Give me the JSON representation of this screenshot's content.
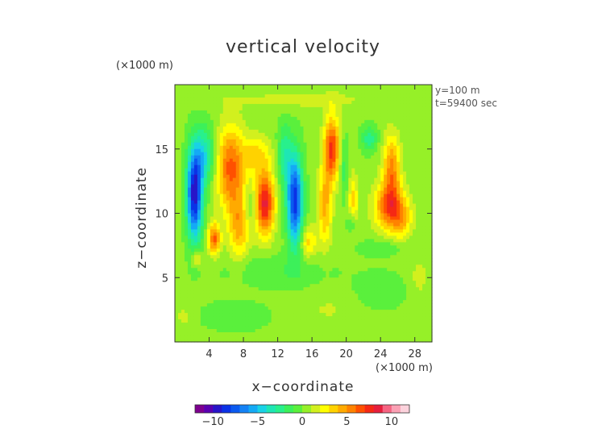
{
  "chart_data": {
    "type": "heatmap",
    "title": "vertical velocity",
    "xlabel": "x−coordinate",
    "ylabel": "z−coordinate",
    "x_unit": "(×1000 m)",
    "y_unit": "(×1000 m)",
    "annotations": [
      "y=100 m",
      "t=59400 sec"
    ],
    "xlim": [
      0,
      30
    ],
    "ylim": [
      0,
      20
    ],
    "x_ticks": [
      4,
      8,
      12,
      16,
      20,
      24,
      28
    ],
    "y_ticks": [
      5,
      10,
      15
    ],
    "colorbar": {
      "range": [
        -12,
        12
      ],
      "ticks": [
        -10,
        -5,
        0,
        5,
        10
      ],
      "tick_labels": [
        "−10",
        "−5",
        "0",
        "5",
        "10"
      ],
      "colors": [
        "#7d008f",
        "#5a00b0",
        "#2814c8",
        "#0a32e6",
        "#0a5af0",
        "#1482f5",
        "#14aaf5",
        "#19d2e6",
        "#1ee6b4",
        "#28f08c",
        "#3cf05a",
        "#5af03c",
        "#96f028",
        "#d2f01e",
        "#ffff00",
        "#ffd200",
        "#ffaa00",
        "#ff8200",
        "#ff5000",
        "#f52814",
        "#e61e3c",
        "#f56482",
        "#faa0b4",
        "#fcd2dc"
      ]
    },
    "background_value": 0.3,
    "features": [
      {
        "x": 2.3,
        "z": 11.5,
        "sx": 0.9,
        "sz": 3.5,
        "amp": -10
      },
      {
        "x": 3.5,
        "z": 14.5,
        "sx": 1.2,
        "sz": 2.2,
        "amp": -4
      },
      {
        "x": 4.6,
        "z": 8.0,
        "sx": 0.7,
        "sz": 1.2,
        "amp": 6
      },
      {
        "x": 2.5,
        "z": 6.5,
        "sx": 0.6,
        "sz": 0.6,
        "amp": 3
      },
      {
        "x": 6.5,
        "z": 13.5,
        "sx": 1.6,
        "sz": 3.2,
        "amp": 6
      },
      {
        "x": 7.5,
        "z": 9.0,
        "sx": 1.2,
        "sz": 2.5,
        "amp": 4
      },
      {
        "x": 10.5,
        "z": 10.8,
        "sx": 1.1,
        "sz": 2.4,
        "amp": 8
      },
      {
        "x": 9.5,
        "z": 14.5,
        "sx": 1.6,
        "sz": 1.5,
        "amp": 3
      },
      {
        "x": 8.8,
        "z": 10.5,
        "sx": 0.7,
        "sz": 1.2,
        "amp": -2
      },
      {
        "x": 12.8,
        "z": 14.5,
        "sx": 0.8,
        "sz": 2.5,
        "amp": -3
      },
      {
        "x": 14.0,
        "z": 11.0,
        "sx": 0.9,
        "sz": 3.5,
        "amp": -9
      },
      {
        "x": 15.6,
        "z": 7.8,
        "sx": 0.9,
        "sz": 1.2,
        "amp": 3
      },
      {
        "x": 18.3,
        "z": 15.0,
        "sx": 0.9,
        "sz": 2.5,
        "amp": 7
      },
      {
        "x": 17.5,
        "z": 10.5,
        "sx": 0.8,
        "sz": 3.0,
        "amp": 4
      },
      {
        "x": 19.8,
        "z": 13.5,
        "sx": 0.5,
        "sz": 2.5,
        "amp": -2
      },
      {
        "x": 20.8,
        "z": 11.0,
        "sx": 0.6,
        "sz": 2.0,
        "amp": 3
      },
      {
        "x": 20.6,
        "z": 9.2,
        "sx": 0.5,
        "sz": 0.8,
        "amp": -2
      },
      {
        "x": 22.7,
        "z": 15.8,
        "sx": 0.9,
        "sz": 1.0,
        "amp": -3
      },
      {
        "x": 25.3,
        "z": 13.5,
        "sx": 1.0,
        "sz": 2.5,
        "amp": 5
      },
      {
        "x": 25.0,
        "z": 10.5,
        "sx": 1.7,
        "sz": 1.8,
        "amp": 6
      },
      {
        "x": 26.5,
        "z": 9.5,
        "sx": 1.2,
        "sz": 1.5,
        "amp": 3
      },
      {
        "x": 12.0,
        "z": 5.5,
        "sx": 6.0,
        "sz": 1.2,
        "amp": -1.2
      },
      {
        "x": 24.0,
        "z": 4.0,
        "sx": 3.0,
        "sz": 1.5,
        "amp": -1.0
      },
      {
        "x": 7.0,
        "z": 2.0,
        "sx": 4.0,
        "sz": 1.2,
        "amp": -1.0
      },
      {
        "x": 18.0,
        "z": 2.5,
        "sx": 3.0,
        "sz": 1.2,
        "amp": 0.8
      },
      {
        "x": 28.5,
        "z": 5.0,
        "sx": 1.0,
        "sz": 1.5,
        "amp": 1.2
      },
      {
        "x": 1.0,
        "z": 2.0,
        "sx": 1.0,
        "sz": 1.2,
        "amp": 1.0
      },
      {
        "x": 15.0,
        "z": 18.8,
        "sx": 10.0,
        "sz": 0.8,
        "amp": 1.0
      },
      {
        "x": 24.0,
        "z": 7.3,
        "sx": 2.5,
        "sz": 0.6,
        "amp": -1.5
      }
    ]
  }
}
